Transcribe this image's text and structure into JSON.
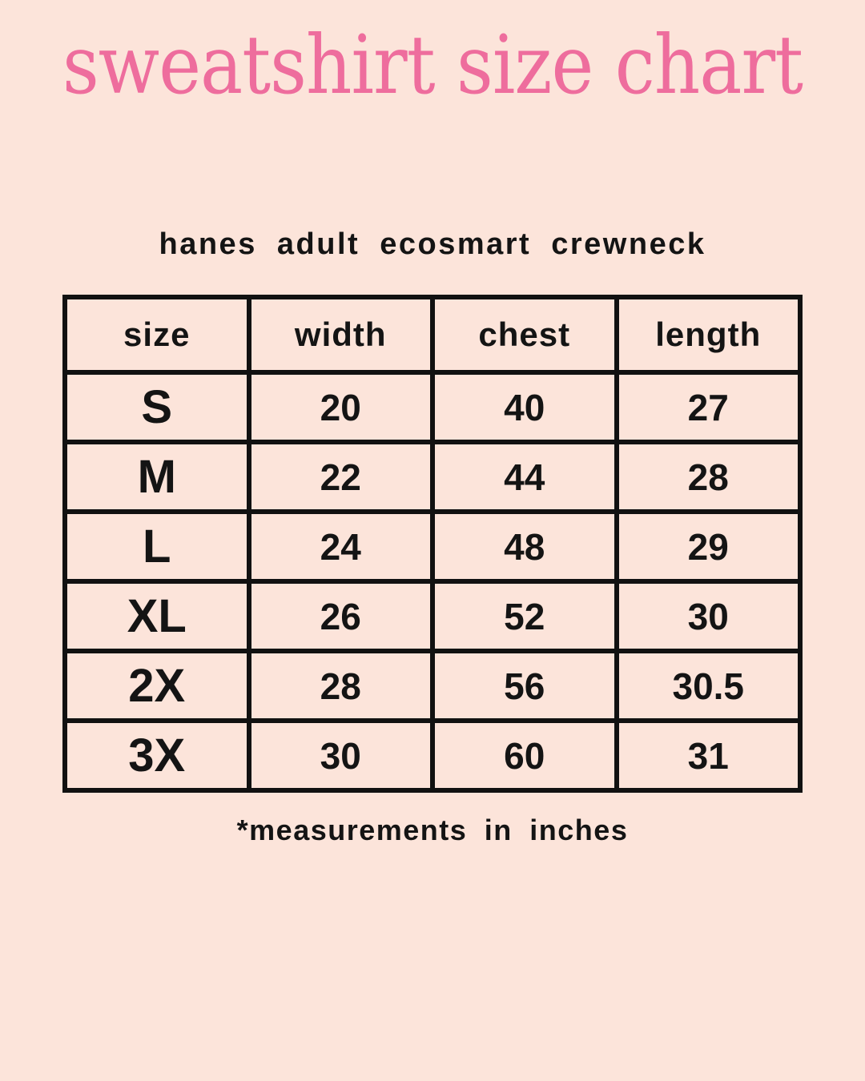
{
  "page": {
    "title": "sweatshirt size chart",
    "subtitle": "hanes adult ecosmart crewneck",
    "footnote": "*measurements in inches"
  },
  "colors": {
    "background": "#fce4da",
    "title_pink": "#ee6d9d",
    "text_black": "#141414",
    "table_border": "#111111"
  },
  "chart_data": {
    "type": "table",
    "title": "sweatshirt size chart",
    "subtitle": "hanes adult ecosmart crewneck",
    "units": "inches",
    "columns": [
      "size",
      "width",
      "chest",
      "length"
    ],
    "rows": [
      {
        "size": "S",
        "width": "20",
        "chest": "40",
        "length": "27"
      },
      {
        "size": "M",
        "width": "22",
        "chest": "44",
        "length": "28"
      },
      {
        "size": "L",
        "width": "24",
        "chest": "48",
        "length": "29"
      },
      {
        "size": "XL",
        "width": "26",
        "chest": "52",
        "length": "30"
      },
      {
        "size": "2X",
        "width": "28",
        "chest": "56",
        "length": "30.5"
      },
      {
        "size": "3X",
        "width": "30",
        "chest": "60",
        "length": "31"
      }
    ],
    "footnote": "*measurements in inches"
  }
}
